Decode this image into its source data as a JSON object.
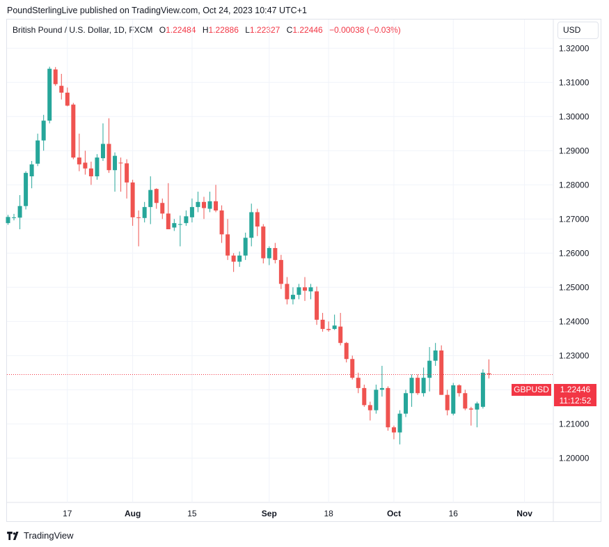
{
  "header": {
    "publisher": "PoundSterlingLive published on TradingView.com, Oct 24, 2023 10:47 UTC+1"
  },
  "legend": {
    "symbol": "British Pound / U.S. Dollar, 1D, FXCM",
    "open_label": "O",
    "open": "1.22484",
    "high_label": "H",
    "high": "1.22886",
    "low_label": "L",
    "low": "1.22327",
    "close_label": "C",
    "close": "1.22446",
    "change": "−0.00038 (−0.03%)"
  },
  "currency_button": "USD",
  "price_marker": {
    "symbol": "GBPUSD",
    "price": "1.22446",
    "countdown": "11:12:52"
  },
  "footer": {
    "brand": "TradingView"
  },
  "colors": {
    "up": "#26a69a",
    "down": "#ef5350",
    "grid": "#f0f3fa",
    "last_price_line": "#f23645"
  },
  "chart_data": {
    "type": "candlestick",
    "ylim": [
      1.1915,
      1.3225
    ],
    "yticks": [
      "1.32000",
      "1.31000",
      "1.30000",
      "1.29000",
      "1.28000",
      "1.27000",
      "1.26000",
      "1.25000",
      "1.24000",
      "1.23000",
      "1.22000",
      "1.21000",
      "1.20000"
    ],
    "xticks": [
      {
        "label": "17",
        "index": 10,
        "major": false
      },
      {
        "label": "Aug",
        "index": 21,
        "major": true
      },
      {
        "label": "15",
        "index": 31,
        "major": false
      },
      {
        "label": "Sep",
        "index": 44,
        "major": true
      },
      {
        "label": "18",
        "index": 54,
        "major": false
      },
      {
        "label": "Oct",
        "index": 65,
        "major": true
      },
      {
        "label": "16",
        "index": 75,
        "major": false
      },
      {
        "label": "Nov",
        "index": 87,
        "major": true
      }
    ],
    "candles": [
      {
        "o": 1.2688,
        "h": 1.2712,
        "l": 1.2683,
        "c": 1.2706
      },
      {
        "o": 1.2703,
        "h": 1.2715,
        "l": 1.2696,
        "c": 1.2705
      },
      {
        "o": 1.2704,
        "h": 1.277,
        "l": 1.267,
        "c": 1.2738
      },
      {
        "o": 1.2738,
        "h": 1.284,
        "l": 1.2728,
        "c": 1.2835
      },
      {
        "o": 1.2825,
        "h": 1.287,
        "l": 1.279,
        "c": 1.286
      },
      {
        "o": 1.2862,
        "h": 1.295,
        "l": 1.2855,
        "c": 1.293
      },
      {
        "o": 1.293,
        "h": 1.3005,
        "l": 1.29,
        "c": 1.2988
      },
      {
        "o": 1.2988,
        "h": 1.3146,
        "l": 1.298,
        "c": 1.314
      },
      {
        "o": 1.3138,
        "h": 1.3145,
        "l": 1.309,
        "c": 1.3095
      },
      {
        "o": 1.309,
        "h": 1.3125,
        "l": 1.305,
        "c": 1.307
      },
      {
        "o": 1.307,
        "h": 1.3085,
        "l": 1.303,
        "c": 1.3032
      },
      {
        "o": 1.3035,
        "h": 1.304,
        "l": 1.2875,
        "c": 1.288
      },
      {
        "o": 1.288,
        "h": 1.295,
        "l": 1.284,
        "c": 1.286
      },
      {
        "o": 1.2865,
        "h": 1.29,
        "l": 1.283,
        "c": 1.2848
      },
      {
        "o": 1.2848,
        "h": 1.2868,
        "l": 1.28,
        "c": 1.2825
      },
      {
        "o": 1.2825,
        "h": 1.289,
        "l": 1.2815,
        "c": 1.288
      },
      {
        "o": 1.2878,
        "h": 1.298,
        "l": 1.287,
        "c": 1.292
      },
      {
        "o": 1.292,
        "h": 1.2995,
        "l": 1.2835,
        "c": 1.2843
      },
      {
        "o": 1.2843,
        "h": 1.2895,
        "l": 1.278,
        "c": 1.2885
      },
      {
        "o": 1.2865,
        "h": 1.288,
        "l": 1.278,
        "c": 1.2863
      },
      {
        "o": 1.2863,
        "h": 1.2875,
        "l": 1.276,
        "c": 1.2807
      },
      {
        "o": 1.2807,
        "h": 1.2815,
        "l": 1.268,
        "c": 1.2705
      },
      {
        "o": 1.2705,
        "h": 1.2725,
        "l": 1.262,
        "c": 1.2703
      },
      {
        "o": 1.2703,
        "h": 1.275,
        "l": 1.269,
        "c": 1.2735
      },
      {
        "o": 1.2735,
        "h": 1.2825,
        "l": 1.2685,
        "c": 1.2785
      },
      {
        "o": 1.2788,
        "h": 1.279,
        "l": 1.273,
        "c": 1.2747
      },
      {
        "o": 1.2747,
        "h": 1.276,
        "l": 1.27,
        "c": 1.2716
      },
      {
        "o": 1.2716,
        "h": 1.2805,
        "l": 1.267,
        "c": 1.267
      },
      {
        "o": 1.2675,
        "h": 1.27,
        "l": 1.2665,
        "c": 1.2688
      },
      {
        "o": 1.2685,
        "h": 1.271,
        "l": 1.262,
        "c": 1.2685
      },
      {
        "o": 1.2688,
        "h": 1.2725,
        "l": 1.268,
        "c": 1.2708
      },
      {
        "o": 1.2705,
        "h": 1.276,
        "l": 1.269,
        "c": 1.2735
      },
      {
        "o": 1.2735,
        "h": 1.278,
        "l": 1.272,
        "c": 1.275
      },
      {
        "o": 1.275,
        "h": 1.2765,
        "l": 1.27,
        "c": 1.2732
      },
      {
        "o": 1.273,
        "h": 1.278,
        "l": 1.272,
        "c": 1.2752
      },
      {
        "o": 1.2752,
        "h": 1.28,
        "l": 1.272,
        "c": 1.2725
      },
      {
        "o": 1.2725,
        "h": 1.274,
        "l": 1.263,
        "c": 1.2655
      },
      {
        "o": 1.2655,
        "h": 1.27,
        "l": 1.258,
        "c": 1.2593
      },
      {
        "o": 1.2593,
        "h": 1.26,
        "l": 1.2545,
        "c": 1.2575
      },
      {
        "o": 1.2575,
        "h": 1.2605,
        "l": 1.256,
        "c": 1.2593
      },
      {
        "o": 1.2593,
        "h": 1.266,
        "l": 1.258,
        "c": 1.2645
      },
      {
        "o": 1.2645,
        "h": 1.2745,
        "l": 1.262,
        "c": 1.272
      },
      {
        "o": 1.272,
        "h": 1.273,
        "l": 1.265,
        "c": 1.2678
      },
      {
        "o": 1.2678,
        "h": 1.2685,
        "l": 1.257,
        "c": 1.2585
      },
      {
        "o": 1.2585,
        "h": 1.262,
        "l": 1.2565,
        "c": 1.2615
      },
      {
        "o": 1.2615,
        "h": 1.263,
        "l": 1.257,
        "c": 1.258
      },
      {
        "o": 1.258,
        "h": 1.2595,
        "l": 1.2495,
        "c": 1.251
      },
      {
        "o": 1.251,
        "h": 1.253,
        "l": 1.245,
        "c": 1.2465
      },
      {
        "o": 1.2465,
        "h": 1.25,
        "l": 1.245,
        "c": 1.2478
      },
      {
        "o": 1.2478,
        "h": 1.251,
        "l": 1.2465,
        "c": 1.25
      },
      {
        "o": 1.25,
        "h": 1.253,
        "l": 1.246,
        "c": 1.249
      },
      {
        "o": 1.2488,
        "h": 1.251,
        "l": 1.2465,
        "c": 1.25
      },
      {
        "o": 1.2488,
        "h": 1.2502,
        "l": 1.239,
        "c": 1.2405
      },
      {
        "o": 1.2405,
        "h": 1.2425,
        "l": 1.237,
        "c": 1.2378
      },
      {
        "o": 1.2378,
        "h": 1.24,
        "l": 1.237,
        "c": 1.2375
      },
      {
        "o": 1.2378,
        "h": 1.242,
        "l": 1.2375,
        "c": 1.2388
      },
      {
        "o": 1.2385,
        "h": 1.2425,
        "l": 1.233,
        "c": 1.2337
      },
      {
        "o": 1.2337,
        "h": 1.234,
        "l": 1.228,
        "c": 1.229
      },
      {
        "o": 1.229,
        "h": 1.23,
        "l": 1.223,
        "c": 1.2235
      },
      {
        "o": 1.2235,
        "h": 1.225,
        "l": 1.219,
        "c": 1.2205
      },
      {
        "o": 1.2205,
        "h": 1.2215,
        "l": 1.215,
        "c": 1.2155
      },
      {
        "o": 1.2155,
        "h": 1.2165,
        "l": 1.211,
        "c": 1.214
      },
      {
        "o": 1.214,
        "h": 1.2215,
        "l": 1.213,
        "c": 1.22
      },
      {
        "o": 1.22,
        "h": 1.227,
        "l": 1.218,
        "c": 1.2205
      },
      {
        "o": 1.2205,
        "h": 1.221,
        "l": 1.208,
        "c": 1.209
      },
      {
        "o": 1.209,
        "h": 1.2095,
        "l": 1.2055,
        "c": 1.2075
      },
      {
        "o": 1.2075,
        "h": 1.214,
        "l": 1.204,
        "c": 1.213
      },
      {
        "o": 1.213,
        "h": 1.22,
        "l": 1.212,
        "c": 1.219
      },
      {
        "o": 1.219,
        "h": 1.2245,
        "l": 1.215,
        "c": 1.2235
      },
      {
        "o": 1.2235,
        "h": 1.2245,
        "l": 1.2185,
        "c": 1.219
      },
      {
        "o": 1.219,
        "h": 1.2265,
        "l": 1.218,
        "c": 1.2235
      },
      {
        "o": 1.2235,
        "h": 1.2325,
        "l": 1.2195,
        "c": 1.2285
      },
      {
        "o": 1.2285,
        "h": 1.2337,
        "l": 1.227,
        "c": 1.2315
      },
      {
        "o": 1.2315,
        "h": 1.233,
        "l": 1.2185,
        "c": 1.2185
      },
      {
        "o": 1.2185,
        "h": 1.22,
        "l": 1.2125,
        "c": 1.214
      },
      {
        "o": 1.213,
        "h": 1.222,
        "l": 1.2125,
        "c": 1.2213
      },
      {
        "o": 1.2213,
        "h": 1.2216,
        "l": 1.218,
        "c": 1.219
      },
      {
        "o": 1.219,
        "h": 1.22,
        "l": 1.214,
        "c": 1.2145
      },
      {
        "o": 1.2145,
        "h": 1.215,
        "l": 1.2095,
        "c": 1.2142
      },
      {
        "o": 1.2142,
        "h": 1.2165,
        "l": 1.209,
        "c": 1.216
      },
      {
        "o": 1.215,
        "h": 1.226,
        "l": 1.2145,
        "c": 1.225
      },
      {
        "o": 1.2248,
        "h": 1.2289,
        "l": 1.2233,
        "c": 1.2245
      }
    ],
    "last_price": 1.22446
  }
}
